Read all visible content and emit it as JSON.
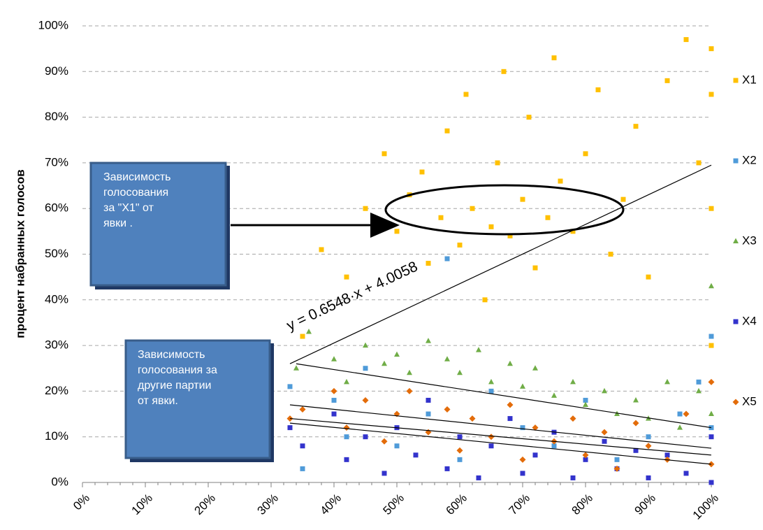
{
  "chart_data": {
    "type": "scatter",
    "y_label": "процент набранных голосов",
    "xlim": [
      0,
      100
    ],
    "ylim": [
      0,
      100
    ],
    "xticks": [
      {
        "value": 0,
        "label": "0%"
      },
      {
        "value": 10,
        "label": "10%"
      },
      {
        "value": 20,
        "label": "20%"
      },
      {
        "value": 30,
        "label": "30%"
      },
      {
        "value": 40,
        "label": "40%"
      },
      {
        "value": 50,
        "label": "50%"
      },
      {
        "value": 60,
        "label": "60%"
      },
      {
        "value": 70,
        "label": "70%"
      },
      {
        "value": 80,
        "label": "80%"
      },
      {
        "value": 90,
        "label": "90%"
      },
      {
        "value": 100,
        "label": "100%"
      }
    ],
    "yticks": [
      {
        "value": 0,
        "label": "0%"
      },
      {
        "value": 10,
        "label": "10%"
      },
      {
        "value": 20,
        "label": "20%"
      },
      {
        "value": 30,
        "label": "30%"
      },
      {
        "value": 40,
        "label": "40%"
      },
      {
        "value": 50,
        "label": "50%"
      },
      {
        "value": 60,
        "label": "60%"
      },
      {
        "value": 70,
        "label": "70%"
      },
      {
        "value": 80,
        "label": "80%"
      },
      {
        "value": 90,
        "label": "90%"
      },
      {
        "value": 100,
        "label": "100%"
      }
    ],
    "grid": true,
    "legend": "right",
    "series": [
      {
        "name": "X1",
        "color": "#FFC000",
        "marker": "square",
        "x": [
          35,
          38,
          42,
          45,
          48,
          50,
          52,
          54,
          55,
          57,
          58,
          60,
          61,
          62,
          64,
          65,
          66,
          67,
          68,
          70,
          71,
          72,
          74,
          75,
          76,
          78,
          80,
          82,
          84,
          86,
          88,
          90,
          93,
          96,
          98,
          100,
          100,
          100,
          100
        ],
        "values": [
          32,
          51,
          45,
          60,
          72,
          55,
          63,
          68,
          48,
          58,
          77,
          52,
          85,
          60,
          40,
          56,
          70,
          90,
          54,
          62,
          80,
          47,
          58,
          93,
          66,
          55,
          72,
          86,
          50,
          62,
          78,
          45,
          88,
          97,
          70,
          60,
          85,
          30,
          95
        ]
      },
      {
        "name": "X2",
        "color": "#4F9BD9",
        "marker": "square",
        "x": [
          33,
          35,
          40,
          42,
          45,
          50,
          55,
          58,
          60,
          65,
          70,
          75,
          80,
          85,
          90,
          95,
          98,
          100,
          100
        ],
        "values": [
          21,
          3,
          18,
          10,
          25,
          8,
          15,
          49,
          5,
          20,
          12,
          8,
          18,
          5,
          10,
          15,
          22,
          32,
          12
        ]
      },
      {
        "name": "X3",
        "color": "#70AD47",
        "marker": "triangle",
        "x": [
          34,
          36,
          40,
          42,
          45,
          48,
          50,
          52,
          55,
          58,
          60,
          63,
          65,
          68,
          70,
          72,
          75,
          78,
          80,
          83,
          85,
          88,
          90,
          93,
          95,
          98,
          100,
          100
        ],
        "values": [
          25,
          33,
          27,
          22,
          30,
          26,
          28,
          24,
          31,
          27,
          24,
          29,
          22,
          26,
          21,
          25,
          19,
          22,
          17,
          20,
          15,
          18,
          14,
          22,
          12,
          20,
          43,
          15
        ]
      },
      {
        "name": "X4",
        "color": "#3333CC",
        "marker": "square",
        "x": [
          33,
          35,
          40,
          42,
          45,
          48,
          50,
          53,
          55,
          58,
          60,
          63,
          65,
          68,
          70,
          72,
          75,
          78,
          80,
          83,
          85,
          88,
          90,
          93,
          96,
          100,
          100
        ],
        "values": [
          12,
          8,
          15,
          5,
          10,
          2,
          12,
          6,
          18,
          3,
          10,
          1,
          8,
          14,
          2,
          6,
          11,
          1,
          5,
          9,
          3,
          7,
          1,
          6,
          2,
          10,
          0
        ]
      },
      {
        "name": "X5",
        "color": "#E36C0A",
        "marker": "diamond",
        "x": [
          33,
          35,
          40,
          42,
          45,
          48,
          50,
          52,
          55,
          58,
          60,
          62,
          65,
          68,
          70,
          72,
          75,
          78,
          80,
          83,
          85,
          88,
          90,
          93,
          96,
          100,
          100
        ],
        "values": [
          14,
          16,
          20,
          12,
          18,
          9,
          15,
          20,
          11,
          16,
          7,
          14,
          10,
          17,
          5,
          12,
          9,
          14,
          6,
          11,
          3,
          13,
          8,
          5,
          15,
          22,
          4
        ]
      }
    ],
    "trendlines": [
      {
        "x": [
          33,
          100
        ],
        "y": [
          26,
          69.5
        ]
      },
      {
        "x": [
          34,
          100
        ],
        "y": [
          26,
          12
        ]
      },
      {
        "x": [
          33,
          100
        ],
        "y": [
          17,
          7.5
        ]
      },
      {
        "x": [
          33,
          100
        ],
        "y": [
          14,
          6
        ]
      },
      {
        "x": [
          33,
          100
        ],
        "y": [
          13,
          4
        ]
      }
    ],
    "equation": "y = 0.6548·x + 4.0058",
    "annotations": [
      {
        "lines": [
          "Зависимость",
          "голосования",
          "за \"X1\"  от",
          "явки ."
        ]
      },
      {
        "lines": [
          "Зависимость",
          "голосования  за",
          "другие партии",
          "от явки."
        ]
      }
    ]
  }
}
